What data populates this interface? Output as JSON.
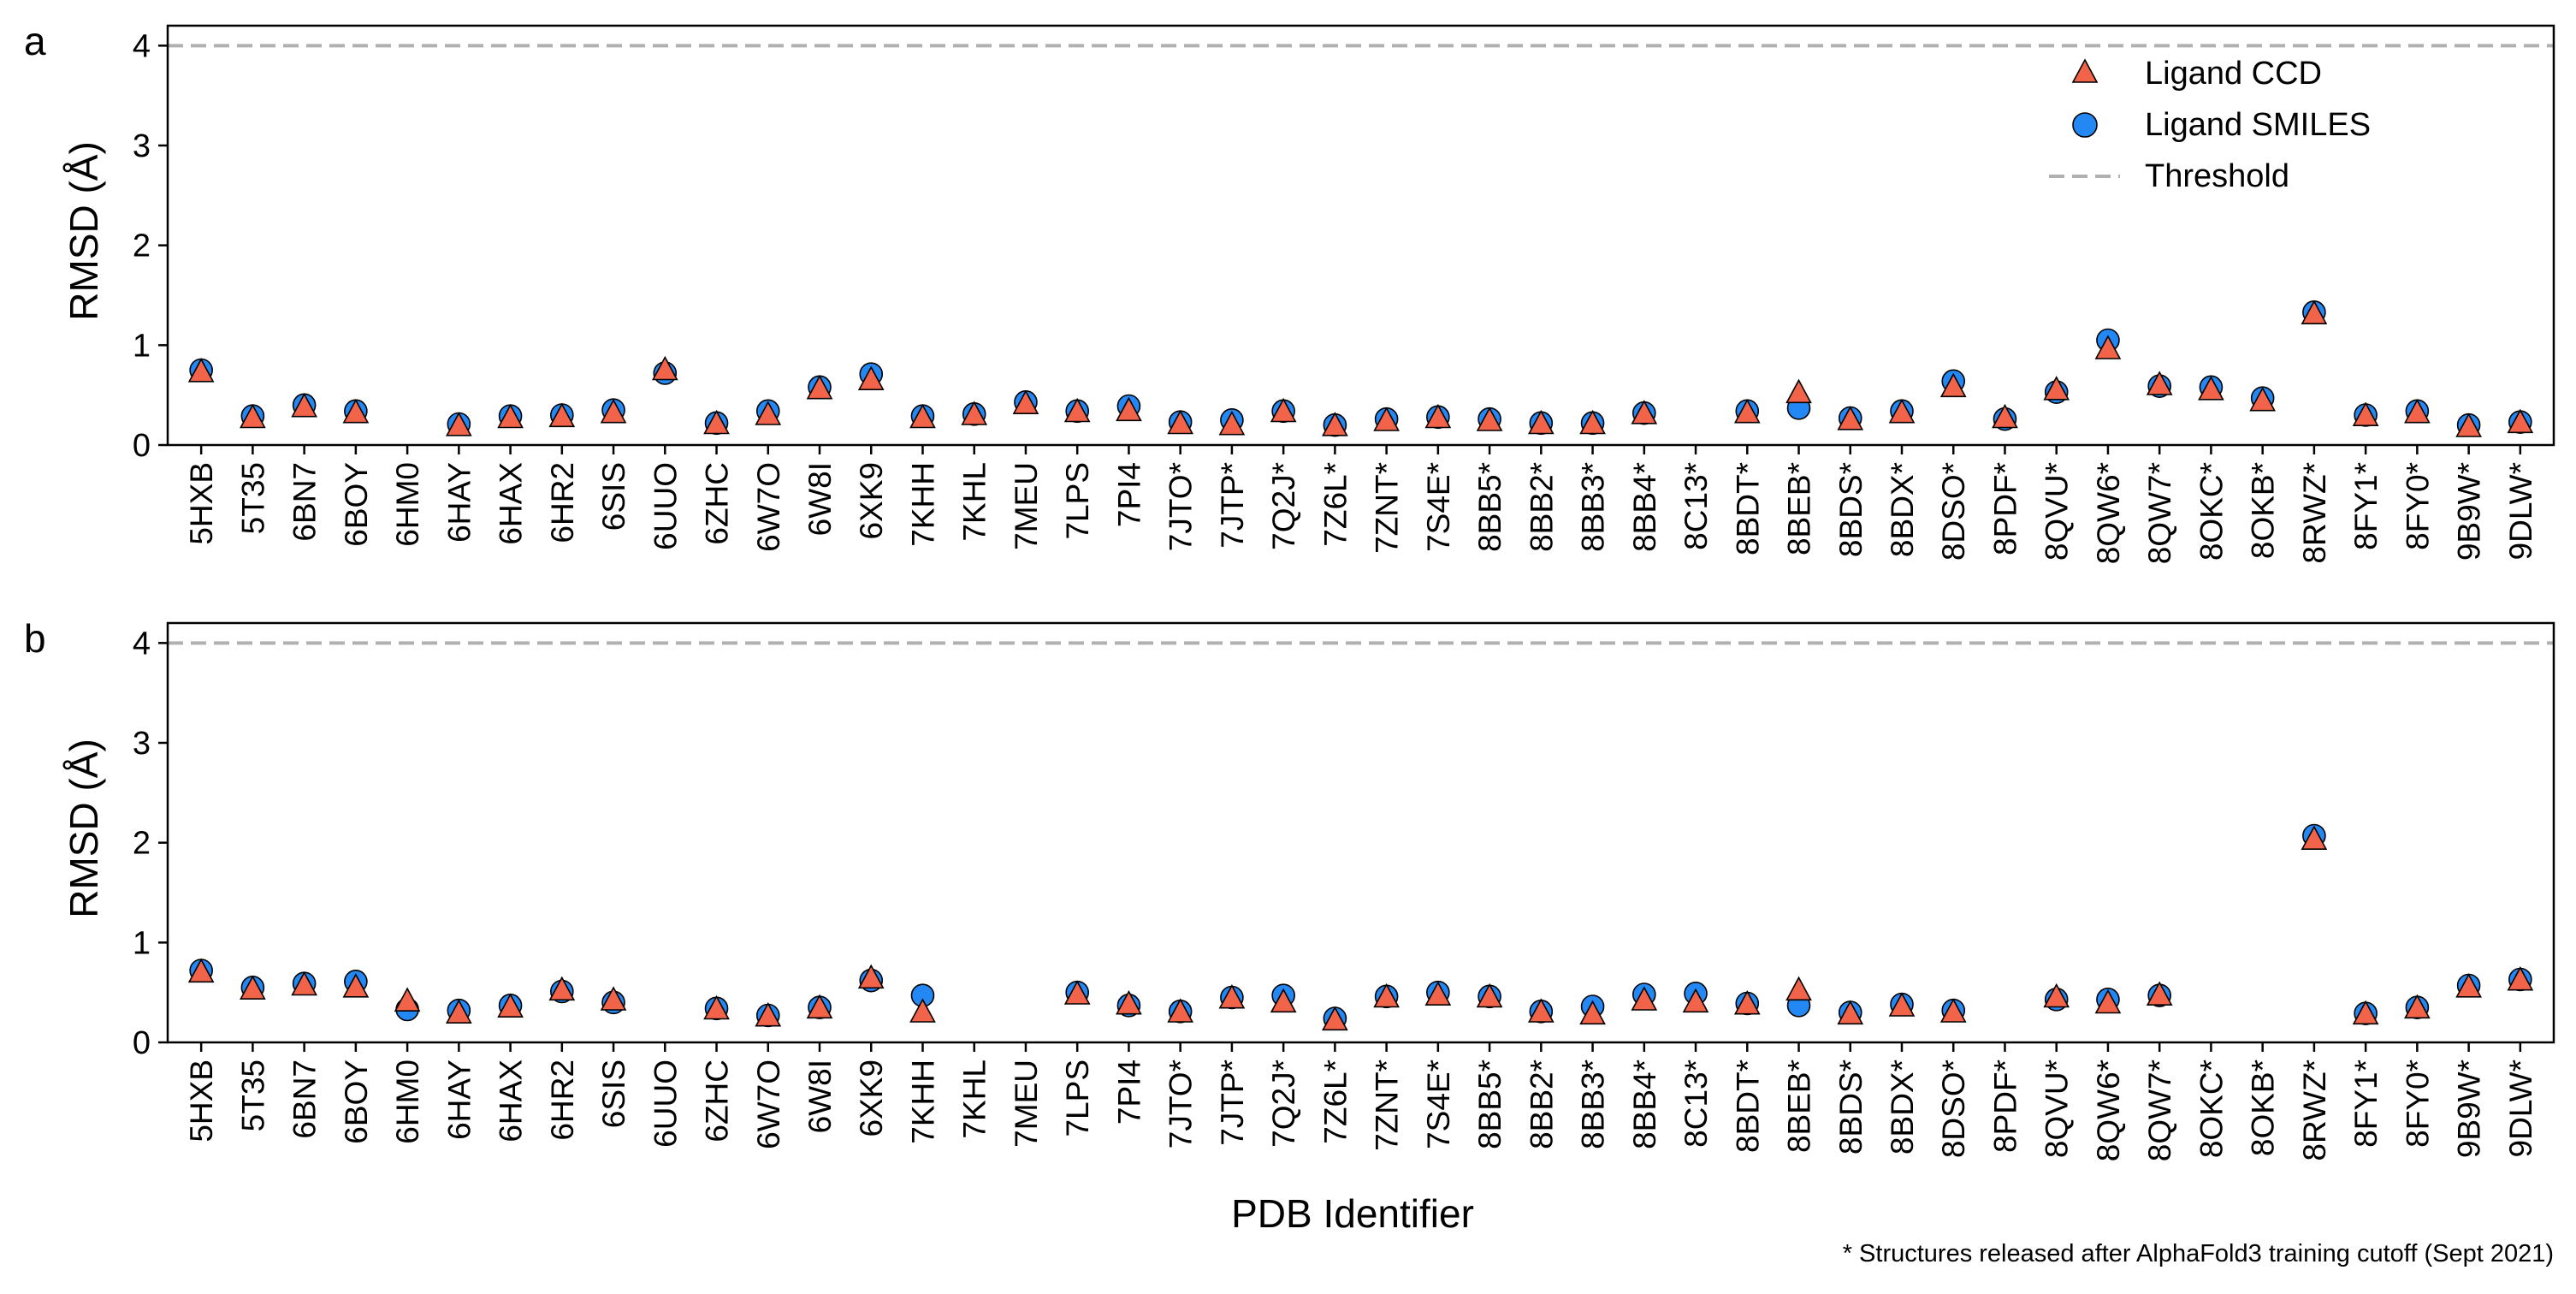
{
  "figure": {
    "panel_letters": [
      "a",
      "b"
    ],
    "footnote": "* Structures released after AlphaFold3 training cutoff (Sept 2021)",
    "xlabel": "PDB Identifier",
    "ylabel": "RMSD (Å)"
  },
  "legend": {
    "items": [
      {
        "label": "Ligand CCD",
        "marker": "triangle"
      },
      {
        "label": "Ligand SMILES",
        "marker": "circle"
      },
      {
        "label": "Threshold",
        "marker": "dashed-line"
      }
    ]
  },
  "colors": {
    "ccd": "#f26449",
    "smiles": "#2388f3",
    "threshold": "#b0b0b0",
    "edge": "#000000"
  },
  "chart_data": [
    {
      "type": "scatter",
      "panel": "a",
      "xlabel": "",
      "ylabel": "RMSD (Å)",
      "ylim": [
        0,
        4.2
      ],
      "yticks": [
        0,
        1,
        2,
        3,
        4
      ],
      "threshold": 4.0,
      "grid": false,
      "legend": "top-right",
      "categories": [
        "5HXB",
        "5T35",
        "6BN7",
        "6BOY",
        "6HM0",
        "6HAY",
        "6HAX",
        "6HR2",
        "6SIS",
        "6UUO",
        "6ZHC",
        "6W7O",
        "6W8I",
        "6XK9",
        "7KHH",
        "7KHL",
        "7MEU",
        "7LPS",
        "7PI4",
        "7JTO*",
        "7JTP*",
        "7Q2J*",
        "7Z6L*",
        "7ZNT*",
        "7S4E*",
        "8BB5*",
        "8BB2*",
        "8BB3*",
        "8BB4*",
        "8C13*",
        "8BDT*",
        "8BEB*",
        "8BDS*",
        "8BDX*",
        "8DSO*",
        "8PDF*",
        "8QVU*",
        "8QW6*",
        "8QW7*",
        "8OKC*",
        "8OKB*",
        "8RWZ*",
        "8FY1*",
        "8FY0*",
        "9B9W*",
        "9DLW*"
      ],
      "series": [
        {
          "name": "Ligand CCD",
          "marker": "triangle",
          "values": [
            0.73,
            0.27,
            0.38,
            0.32,
            null,
            0.19,
            0.27,
            0.28,
            0.32,
            0.75,
            0.21,
            0.3,
            0.56,
            0.65,
            0.27,
            0.3,
            0.41,
            0.33,
            0.34,
            0.21,
            0.2,
            0.33,
            0.19,
            0.24,
            0.27,
            0.24,
            0.21,
            0.21,
            0.31,
            null,
            0.32,
            0.52,
            0.25,
            0.32,
            0.58,
            0.27,
            0.55,
            0.96,
            0.6,
            0.55,
            0.44,
            1.31,
            0.29,
            0.32,
            0.18,
            0.22
          ]
        },
        {
          "name": "Ligand SMILES",
          "marker": "circle",
          "values": [
            0.75,
            0.29,
            0.4,
            0.34,
            null,
            0.21,
            0.29,
            0.3,
            0.35,
            0.72,
            0.22,
            0.34,
            0.58,
            0.71,
            0.29,
            0.31,
            0.43,
            0.34,
            0.39,
            0.23,
            0.25,
            0.34,
            0.2,
            0.26,
            0.28,
            0.26,
            0.22,
            0.22,
            0.32,
            null,
            0.34,
            0.37,
            0.27,
            0.34,
            0.64,
            0.26,
            0.53,
            1.05,
            0.59,
            0.58,
            0.47,
            1.33,
            0.3,
            0.34,
            0.2,
            0.23
          ]
        }
      ]
    },
    {
      "type": "scatter",
      "panel": "b",
      "xlabel": "PDB Identifier",
      "ylabel": "RMSD (Å)",
      "ylim": [
        0,
        4.2
      ],
      "yticks": [
        0,
        1,
        2,
        3,
        4
      ],
      "threshold": 4.0,
      "grid": false,
      "categories": [
        "5HXB",
        "5T35",
        "6BN7",
        "6BOY",
        "6HM0",
        "6HAY",
        "6HAX",
        "6HR2",
        "6SIS",
        "6UUO",
        "6ZHC",
        "6W7O",
        "6W8I",
        "6XK9",
        "7KHH",
        "7KHL",
        "7MEU",
        "7LPS",
        "7PI4",
        "7JTO*",
        "7JTP*",
        "7Q2J*",
        "7Z6L*",
        "7ZNT*",
        "7S4E*",
        "8BB5*",
        "8BB2*",
        "8BB3*",
        "8BB4*",
        "8C13*",
        "8BDT*",
        "8BEB*",
        "8BDS*",
        "8BDX*",
        "8DSO*",
        "8PDF*",
        "8QVU*",
        "8QW6*",
        "8QW7*",
        "8OKC*",
        "8OKB*",
        "8RWZ*",
        "8FY1*",
        "8FY0*",
        "9B9W*",
        "9DLW*"
      ],
      "series": [
        {
          "name": "Ligand CCD",
          "marker": "triangle",
          "values": [
            0.7,
            0.53,
            0.57,
            0.55,
            0.41,
            0.29,
            0.35,
            0.52,
            0.42,
            null,
            0.33,
            0.26,
            0.34,
            0.64,
            0.3,
            null,
            null,
            0.48,
            0.38,
            0.3,
            0.44,
            0.4,
            0.22,
            0.45,
            0.47,
            0.45,
            0.3,
            0.28,
            0.42,
            0.4,
            0.38,
            0.52,
            0.28,
            0.36,
            0.3,
            null,
            0.45,
            0.39,
            0.47,
            null,
            null,
            2.03,
            0.28,
            0.34,
            0.55,
            0.62
          ]
        },
        {
          "name": "Ligand SMILES",
          "marker": "circle",
          "values": [
            0.72,
            0.55,
            0.59,
            0.61,
            0.33,
            0.32,
            0.37,
            0.51,
            0.4,
            null,
            0.34,
            0.27,
            0.35,
            0.62,
            0.47,
            null,
            null,
            0.5,
            0.37,
            0.31,
            0.45,
            0.47,
            0.24,
            0.46,
            0.5,
            0.46,
            0.31,
            0.36,
            0.48,
            0.49,
            0.39,
            0.37,
            0.3,
            0.38,
            0.32,
            null,
            0.43,
            0.43,
            0.47,
            null,
            null,
            2.07,
            0.29,
            0.35,
            0.57,
            0.63
          ]
        }
      ]
    }
  ]
}
